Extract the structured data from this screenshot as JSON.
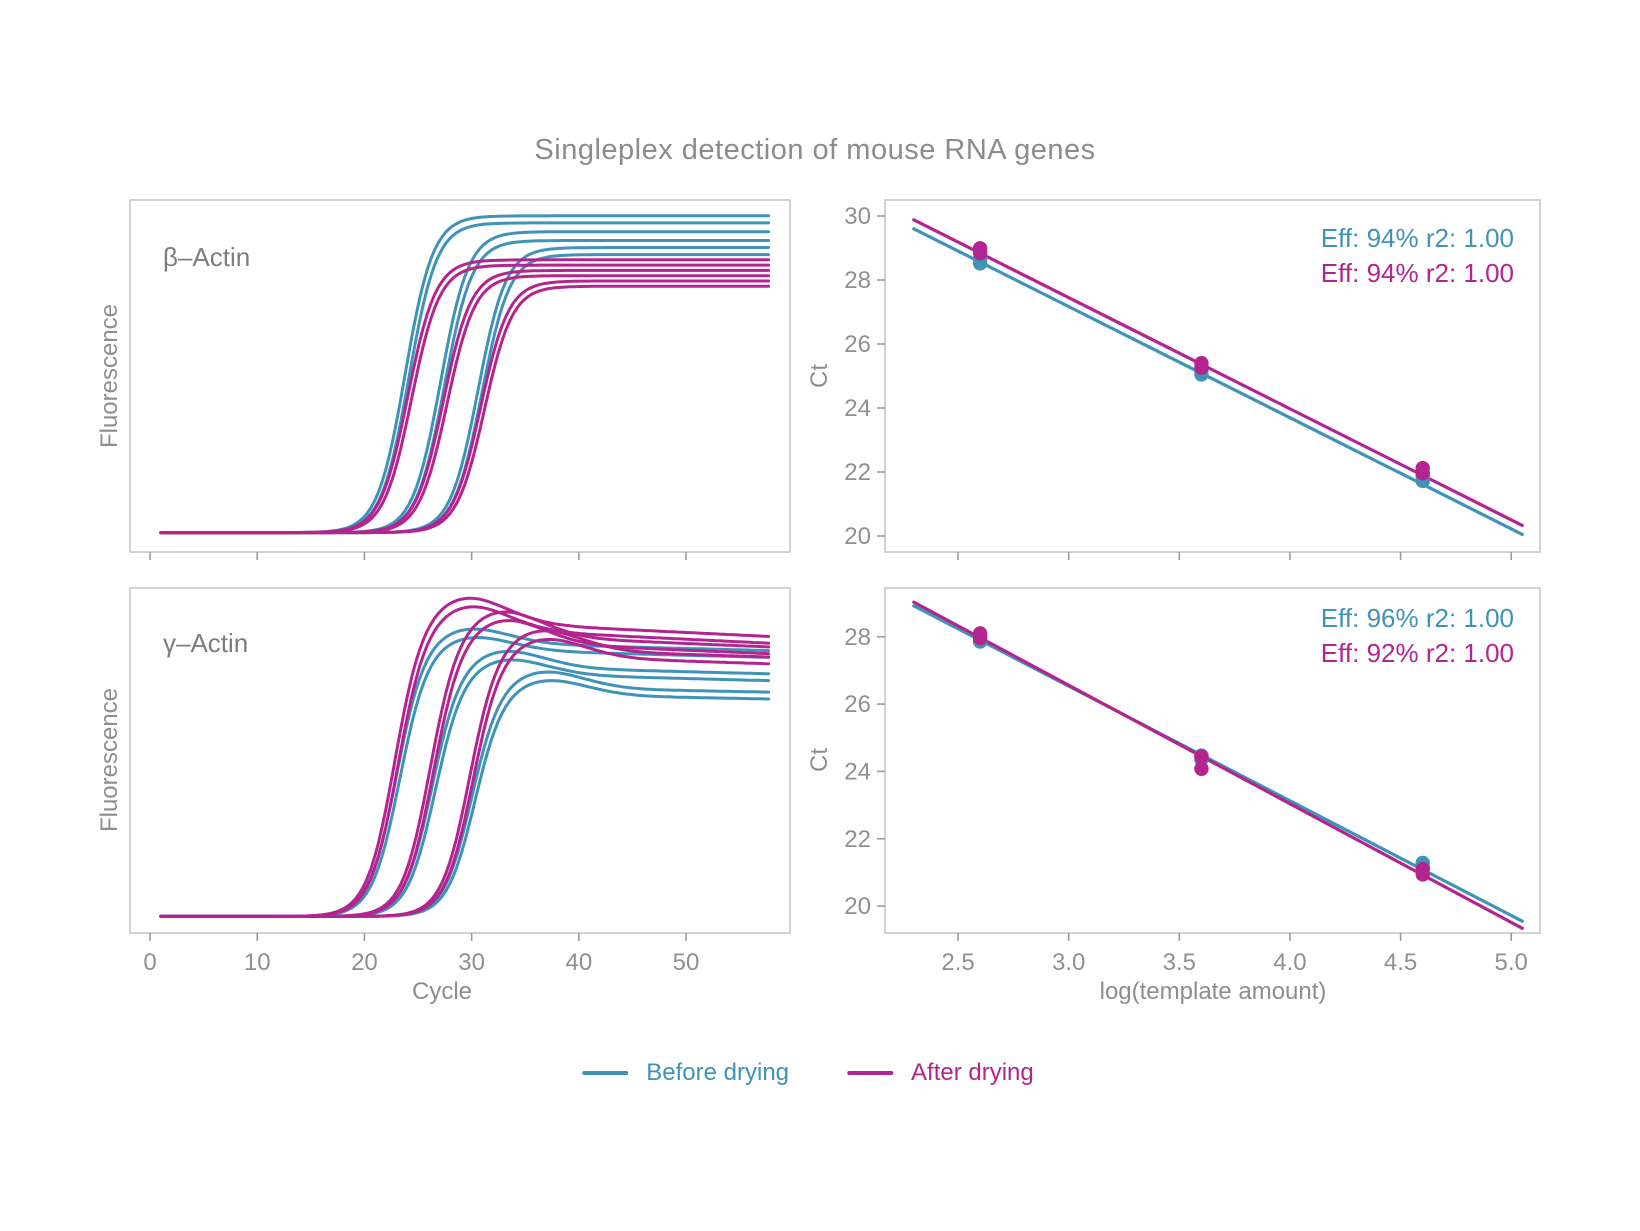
{
  "title": "Singleplex detection of mouse RNA genes",
  "colors": {
    "before": "#3f93b7",
    "after": "#b4248f",
    "axis_text": "#909090",
    "panel_border": "#c8c8c8",
    "tick": "#9b9b9b"
  },
  "legend": {
    "position": "bottom-center",
    "items": [
      {
        "label": "Before drying",
        "color_ref": "before",
        "swatch": "line"
      },
      {
        "label": "After drying",
        "color_ref": "after",
        "swatch": "line"
      }
    ]
  },
  "chart_data": [
    {
      "id": "amp_beta",
      "type": "line",
      "model": "sigmoid-amplification",
      "panel_label": "β–Actin",
      "xlabel": "",
      "ylabel": "Fluorescence",
      "xlim": [
        -1.87,
        59.7
      ],
      "ylim": [
        0,
        1
      ],
      "xticks": [
        0,
        10,
        20,
        30,
        40,
        50
      ],
      "xtick_labels": null,
      "yticks": [],
      "grid": false,
      "baseline": 0.055,
      "series": [
        {
          "name": "Before drying",
          "color_ref": "before",
          "curves": [
            {
              "mid": 23.8,
              "plateau": 0.955
            },
            {
              "mid": 24.15,
              "plateau": 0.935
            },
            {
              "mid": 27.1,
              "plateau": 0.91
            },
            {
              "mid": 27.45,
              "plateau": 0.885
            },
            {
              "mid": 30.6,
              "plateau": 0.865
            },
            {
              "mid": 30.95,
              "plateau": 0.845
            }
          ]
        },
        {
          "name": "After drying",
          "color_ref": "after",
          "curves": [
            {
              "mid": 24.05,
              "plateau": 0.83
            },
            {
              "mid": 24.4,
              "plateau": 0.815
            },
            {
              "mid": 27.35,
              "plateau": 0.8
            },
            {
              "mid": 27.7,
              "plateau": 0.785
            },
            {
              "mid": 30.85,
              "plateau": 0.77
            },
            {
              "mid": 31.2,
              "plateau": 0.755
            }
          ]
        }
      ]
    },
    {
      "id": "std_beta",
      "type": "scatter",
      "panel_label": "",
      "xlabel": "",
      "ylabel": "Ct",
      "xlim": [
        2.17,
        5.13
      ],
      "ylim": [
        19.5,
        30.5
      ],
      "xticks": [
        2.5,
        3.0,
        3.5,
        4.0,
        4.5,
        5.0
      ],
      "xtick_labels": null,
      "yticks": [
        20,
        22,
        24,
        26,
        28,
        30
      ],
      "ytick_labels": [
        "20",
        "22",
        "24",
        "26",
        "28",
        "30"
      ],
      "grid": false,
      "annotations": [
        {
          "text": "Eff: 94% r2: 1.00",
          "color_ref": "before"
        },
        {
          "text": "Eff: 94% r2: 1.00",
          "color_ref": "after"
        }
      ],
      "series": [
        {
          "name": "Before drying",
          "color_ref": "before",
          "fit_line": [
            [
              2.3,
              29.6
            ],
            [
              5.05,
              20.05
            ]
          ],
          "points": [
            [
              2.6,
              28.52
            ],
            [
              2.6,
              28.66
            ],
            [
              3.6,
              25.05
            ],
            [
              3.6,
              25.18
            ],
            [
              4.6,
              21.72
            ],
            [
              4.6,
              21.86
            ]
          ]
        },
        {
          "name": "After drying",
          "color_ref": "after",
          "fit_line": [
            [
              2.3,
              29.88
            ],
            [
              5.05,
              20.33
            ]
          ],
          "points": [
            [
              2.6,
              28.84
            ],
            [
              2.6,
              28.99
            ],
            [
              3.6,
              25.26
            ],
            [
              3.6,
              25.4
            ],
            [
              4.6,
              21.96
            ],
            [
              4.6,
              22.12
            ]
          ]
        }
      ]
    },
    {
      "id": "amp_gamma",
      "type": "line",
      "model": "sigmoid-amplification",
      "panel_label": "γ–Actin",
      "xlabel": "Cycle",
      "ylabel": "Fluorescence",
      "xlim": [
        -1.87,
        59.7
      ],
      "ylim": [
        0,
        1
      ],
      "xticks": [
        0,
        10,
        20,
        30,
        40,
        50
      ],
      "xtick_labels": [
        "0",
        "10",
        "20",
        "30",
        "40",
        "50"
      ],
      "yticks": [],
      "grid": false,
      "baseline": 0.048,
      "series": [
        {
          "name": "Before drying",
          "color_ref": "before",
          "curves": [
            {
              "mid": 22.95,
              "plateau": 0.84,
              "overshoot": 0.045,
              "drift": -0.0008
            },
            {
              "mid": 23.25,
              "plateau": 0.82,
              "overshoot": 0.04,
              "drift": -0.0008
            },
            {
              "mid": 26.25,
              "plateau": 0.77,
              "overshoot": 0.05,
              "drift": -0.0008
            },
            {
              "mid": 26.55,
              "plateau": 0.75,
              "overshoot": 0.045,
              "drift": -0.0008
            },
            {
              "mid": 29.95,
              "plateau": 0.71,
              "overshoot": 0.05,
              "drift": -0.0006
            },
            {
              "mid": 30.25,
              "plateau": 0.69,
              "overshoot": 0.045,
              "drift": -0.0006
            }
          ]
        },
        {
          "name": "After drying",
          "color_ref": "after",
          "curves": [
            {
              "mid": 22.75,
              "plateau": 0.9,
              "overshoot": 0.075,
              "drift": -0.0015
            },
            {
              "mid": 23.05,
              "plateau": 0.88,
              "overshoot": 0.07,
              "drift": -0.0015
            },
            {
              "mid": 26.05,
              "plateau": 0.86,
              "overshoot": 0.075,
              "drift": -0.0013
            },
            {
              "mid": 26.35,
              "plateau": 0.84,
              "overshoot": 0.07,
              "drift": -0.0013
            },
            {
              "mid": 29.75,
              "plateau": 0.82,
              "overshoot": 0.06,
              "drift": -0.001
            },
            {
              "mid": 30.05,
              "plateau": 0.8,
              "overshoot": 0.055,
              "drift": -0.001
            }
          ]
        }
      ]
    },
    {
      "id": "std_gamma",
      "type": "scatter",
      "panel_label": "",
      "xlabel": "log(template amount)",
      "ylabel": "Ct",
      "xlim": [
        2.17,
        5.13
      ],
      "ylim": [
        19.2,
        29.45
      ],
      "xticks": [
        2.5,
        3.0,
        3.5,
        4.0,
        4.5,
        5.0
      ],
      "xtick_labels": [
        "2.5",
        "3.0",
        "3.5",
        "4.0",
        "4.5",
        "5.0"
      ],
      "yticks": [
        20,
        22,
        24,
        26,
        28
      ],
      "ytick_labels": [
        "20",
        "22",
        "24",
        "26",
        "28"
      ],
      "grid": false,
      "annotations": [
        {
          "text": "Eff: 96% r2: 1.00",
          "color_ref": "before"
        },
        {
          "text": "Eff: 92% r2: 1.00",
          "color_ref": "after"
        }
      ],
      "series": [
        {
          "name": "Before drying",
          "color_ref": "before",
          "fit_line": [
            [
              2.3,
              28.92
            ],
            [
              5.05,
              19.55
            ]
          ],
          "points": [
            [
              2.6,
              27.86
            ],
            [
              2.6,
              27.98
            ],
            [
              3.6,
              24.35
            ],
            [
              3.6,
              24.47
            ],
            [
              4.6,
              21.14
            ],
            [
              4.6,
              21.28
            ]
          ]
        },
        {
          "name": "After drying",
          "color_ref": "after",
          "fit_line": [
            [
              2.3,
              29.03
            ],
            [
              5.05,
              19.34
            ]
          ],
          "points": [
            [
              2.6,
              27.96
            ],
            [
              2.6,
              28.1
            ],
            [
              3.6,
              24.08
            ],
            [
              3.6,
              24.44
            ],
            [
              4.6,
              20.94
            ],
            [
              4.6,
              21.1
            ]
          ]
        }
      ]
    }
  ]
}
